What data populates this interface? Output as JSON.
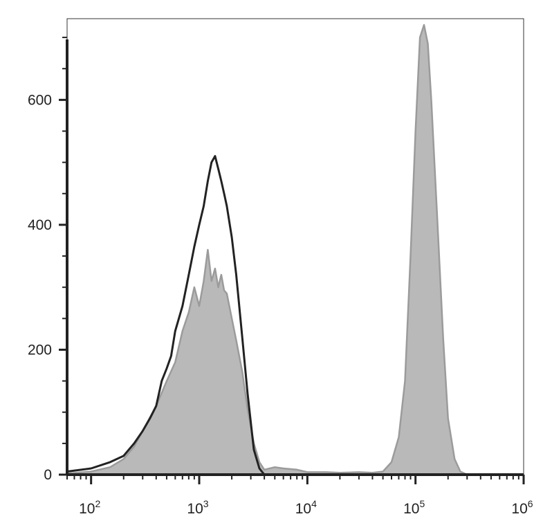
{
  "chart_data": {
    "type": "area",
    "title": "",
    "xlabel": "",
    "ylabel": "",
    "x_scale": "log",
    "xlim": [
      60,
      1000000
    ],
    "ylim": [
      0,
      730
    ],
    "grid": false,
    "legend": "none",
    "y_ticks": [
      {
        "value": 0,
        "label": "0"
      },
      {
        "value": 200,
        "label": "200"
      },
      {
        "value": 400,
        "label": "400"
      },
      {
        "value": 600,
        "label": "600"
      }
    ],
    "x_ticks": [
      {
        "value": 100,
        "base": "10",
        "exp": "2"
      },
      {
        "value": 1000,
        "base": "10",
        "exp": "3"
      },
      {
        "value": 10000,
        "base": "10",
        "exp": "4"
      },
      {
        "value": 100000,
        "base": "10",
        "exp": "5"
      },
      {
        "value": 1000000,
        "base": "10",
        "exp": "6"
      }
    ],
    "series": [
      {
        "style": "filled",
        "color": "#b9b9b9",
        "stroke": "#9b9b9b",
        "points": [
          [
            60,
            2
          ],
          [
            100,
            5
          ],
          [
            150,
            12
          ],
          [
            200,
            25
          ],
          [
            250,
            45
          ],
          [
            300,
            70
          ],
          [
            400,
            110
          ],
          [
            500,
            150
          ],
          [
            600,
            180
          ],
          [
            700,
            230
          ],
          [
            800,
            260
          ],
          [
            900,
            300
          ],
          [
            1000,
            270
          ],
          [
            1100,
            310
          ],
          [
            1200,
            360
          ],
          [
            1300,
            310
          ],
          [
            1400,
            330
          ],
          [
            1500,
            300
          ],
          [
            1600,
            320
          ],
          [
            1700,
            295
          ],
          [
            1800,
            290
          ],
          [
            2000,
            250
          ],
          [
            2200,
            215
          ],
          [
            2500,
            165
          ],
          [
            2800,
            105
          ],
          [
            3200,
            50
          ],
          [
            3600,
            20
          ],
          [
            4000,
            8
          ],
          [
            5000,
            12
          ],
          [
            6000,
            10
          ],
          [
            8000,
            8
          ],
          [
            10000,
            4
          ],
          [
            15000,
            4
          ],
          [
            20000,
            3
          ],
          [
            30000,
            4
          ],
          [
            40000,
            3
          ],
          [
            50000,
            5
          ],
          [
            60000,
            20
          ],
          [
            70000,
            60
          ],
          [
            80000,
            150
          ],
          [
            90000,
            350
          ],
          [
            100000,
            550
          ],
          [
            110000,
            700
          ],
          [
            120000,
            720
          ],
          [
            130000,
            690
          ],
          [
            140000,
            600
          ],
          [
            160000,
            400
          ],
          [
            180000,
            220
          ],
          [
            200000,
            90
          ],
          [
            230000,
            25
          ],
          [
            260000,
            5
          ],
          [
            300000,
            0
          ],
          [
            1000000,
            0
          ]
        ]
      },
      {
        "style": "outline",
        "color": "#222222",
        "points": [
          [
            60,
            5
          ],
          [
            100,
            10
          ],
          [
            150,
            20
          ],
          [
            200,
            30
          ],
          [
            250,
            50
          ],
          [
            300,
            70
          ],
          [
            350,
            90
          ],
          [
            400,
            110
          ],
          [
            450,
            150
          ],
          [
            500,
            170
          ],
          [
            550,
            190
          ],
          [
            600,
            230
          ],
          [
            700,
            270
          ],
          [
            800,
            320
          ],
          [
            900,
            365
          ],
          [
            1000,
            400
          ],
          [
            1100,
            430
          ],
          [
            1200,
            470
          ],
          [
            1300,
            500
          ],
          [
            1400,
            510
          ],
          [
            1500,
            490
          ],
          [
            1600,
            470
          ],
          [
            1700,
            450
          ],
          [
            1800,
            430
          ],
          [
            2000,
            380
          ],
          [
            2200,
            320
          ],
          [
            2500,
            220
          ],
          [
            2800,
            130
          ],
          [
            3200,
            40
          ],
          [
            3600,
            10
          ],
          [
            4000,
            0
          ],
          [
            1000000,
            0
          ]
        ]
      }
    ]
  }
}
